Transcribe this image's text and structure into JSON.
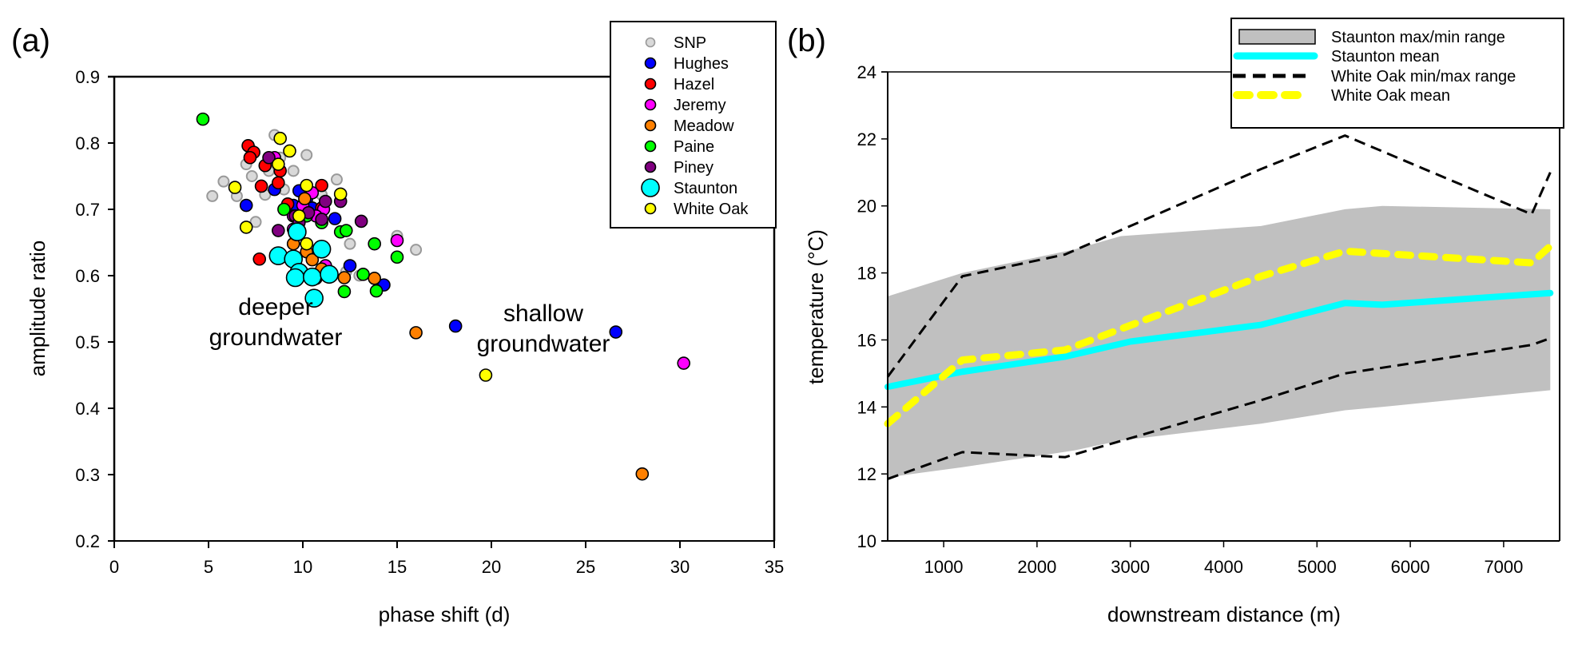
{
  "chart_data": [
    {
      "type": "scatter",
      "panel_label": "(a)",
      "title": "",
      "xlabel": "phase shift (d)",
      "ylabel": "amplitude ratio",
      "xlim": [
        0,
        35
      ],
      "ylim": [
        0.2,
        0.9
      ],
      "xticks": [
        0,
        5,
        10,
        15,
        20,
        25,
        30,
        35
      ],
      "yticks": [
        0.2,
        0.3,
        0.4,
        0.5,
        0.6,
        0.7,
        0.8,
        0.9
      ],
      "grid": false,
      "legend_position": "top-right",
      "annotations": [
        {
          "lines": [
            "deeper",
            "groundwater"
          ],
          "x": 11.5,
          "y": 0.55
        },
        {
          "lines": [
            "shallow",
            "groundwater"
          ],
          "x": 23,
          "y": 0.54
        }
      ],
      "series": [
        {
          "name": "SNP",
          "color": "#d9d9d9",
          "edge": "#999999",
          "size": "small",
          "points": [
            [
              5.2,
              0.72
            ],
            [
              5.8,
              0.742
            ],
            [
              6.5,
              0.72
            ],
            [
              7,
              0.768
            ],
            [
              7.3,
              0.75
            ],
            [
              7.5,
              0.681
            ],
            [
              8,
              0.722
            ],
            [
              8.5,
              0.812
            ],
            [
              8.8,
              0.778
            ],
            [
              9,
              0.73
            ],
            [
              9.5,
              0.758
            ],
            [
              10.2,
              0.782
            ],
            [
              10.5,
              0.702
            ],
            [
              11,
              0.722
            ],
            [
              11.8,
              0.745
            ],
            [
              12.5,
              0.648
            ],
            [
              13,
              0.6
            ],
            [
              15,
              0.66
            ],
            [
              16,
              0.639
            ],
            [
              9.3,
              0.705
            ],
            [
              10.8,
              0.69
            ],
            [
              12.3,
              0.606
            ],
            [
              7.2,
              0.792
            ],
            [
              8.2,
              0.758
            ]
          ]
        },
        {
          "name": "Hughes",
          "color": "#0000ff",
          "edge": "#000000",
          "size": "medium",
          "points": [
            [
              7,
              0.706
            ],
            [
              8.5,
              0.73
            ],
            [
              9.8,
              0.728
            ],
            [
              10.2,
              0.716
            ],
            [
              11.7,
              0.686
            ],
            [
              12.5,
              0.615
            ],
            [
              14.3,
              0.586
            ],
            [
              18.1,
              0.524
            ],
            [
              26.6,
              0.515
            ],
            [
              10.5,
              0.702
            ],
            [
              9.5,
              0.706
            ]
          ]
        },
        {
          "name": "Hazel",
          "color": "#ff0000",
          "edge": "#000000",
          "size": "medium",
          "points": [
            [
              7.1,
              0.796
            ],
            [
              7.4,
              0.786
            ],
            [
              7.2,
              0.778
            ],
            [
              8,
              0.766
            ],
            [
              7.8,
              0.735
            ],
            [
              8.7,
              0.74
            ],
            [
              8.8,
              0.758
            ],
            [
              9.2,
              0.708
            ],
            [
              11,
              0.736
            ],
            [
              7.7,
              0.625
            ],
            [
              11,
              0.702
            ]
          ]
        },
        {
          "name": "Jeremy",
          "color": "#ff00ff",
          "edge": "#000000",
          "size": "medium",
          "points": [
            [
              8.5,
              0.778
            ],
            [
              10.5,
              0.725
            ],
            [
              10,
              0.706
            ],
            [
              9.5,
              0.69
            ],
            [
              11.1,
              0.7
            ],
            [
              11.2,
              0.615
            ],
            [
              9.5,
              0.67
            ],
            [
              15,
              0.653
            ],
            [
              30.2,
              0.468
            ],
            [
              10.7,
              0.69
            ]
          ]
        },
        {
          "name": "Meadow",
          "color": "#ff8000",
          "edge": "#000000",
          "size": "medium",
          "points": [
            [
              10.1,
              0.716
            ],
            [
              9.5,
              0.648
            ],
            [
              10.2,
              0.636
            ],
            [
              10.5,
              0.624
            ],
            [
              10.7,
              0.596
            ],
            [
              12.2,
              0.597
            ],
            [
              13.8,
              0.596
            ],
            [
              16,
              0.514
            ],
            [
              28,
              0.301
            ],
            [
              11,
              0.61
            ]
          ]
        },
        {
          "name": "Paine",
          "color": "#00ff00",
          "edge": "#000000",
          "size": "medium",
          "points": [
            [
              4.7,
              0.836
            ],
            [
              9,
              0.7
            ],
            [
              10.2,
              0.69
            ],
            [
              11,
              0.68
            ],
            [
              12,
              0.666
            ],
            [
              12.3,
              0.668
            ],
            [
              13.8,
              0.648
            ],
            [
              15,
              0.628
            ],
            [
              13.2,
              0.602
            ],
            [
              12.2,
              0.576
            ],
            [
              13.9,
              0.577
            ]
          ]
        },
        {
          "name": "Piney",
          "color": "#800080",
          "edge": "#000000",
          "size": "medium",
          "points": [
            [
              8.2,
              0.778
            ],
            [
              9.6,
              0.69
            ],
            [
              10.3,
              0.695
            ],
            [
              9.8,
              0.68
            ],
            [
              11,
              0.685
            ],
            [
              11.2,
              0.712
            ],
            [
              12,
              0.712
            ],
            [
              13.1,
              0.682
            ],
            [
              8.7,
              0.668
            ]
          ]
        },
        {
          "name": "Staunton",
          "color": "#00ffff",
          "edge": "#000000",
          "size": "large",
          "points": [
            [
              9.7,
              0.666
            ],
            [
              8.7,
              0.63
            ],
            [
              9.5,
              0.625
            ],
            [
              9.8,
              0.605
            ],
            [
              9.6,
              0.597
            ],
            [
              10.5,
              0.598
            ],
            [
              11,
              0.64
            ],
            [
              11.4,
              0.602
            ],
            [
              10.6,
              0.566
            ]
          ]
        },
        {
          "name": "White Oak",
          "color": "#ffff00",
          "edge": "#000000",
          "size": "medium",
          "points": [
            [
              6.4,
              0.733
            ],
            [
              8.8,
              0.807
            ],
            [
              9.3,
              0.788
            ],
            [
              8.7,
              0.768
            ],
            [
              10.2,
              0.736
            ],
            [
              12,
              0.723
            ],
            [
              7,
              0.673
            ],
            [
              10.2,
              0.648
            ],
            [
              19.7,
              0.45
            ],
            [
              9.8,
              0.69
            ]
          ]
        }
      ]
    },
    {
      "type": "line",
      "panel_label": "(b)",
      "title": "",
      "xlabel": "downstream distance (m)",
      "ylabel": "temperature (°C)",
      "xlim": [
        400,
        7600
      ],
      "ylim": [
        10,
        24
      ],
      "xticks": [
        1000,
        2000,
        3000,
        4000,
        5000,
        6000,
        7000
      ],
      "yticks": [
        10,
        12,
        14,
        16,
        18,
        20,
        22,
        24
      ],
      "grid": false,
      "legend_position": "top-right",
      "band": {
        "name": "Staunton max/min range",
        "color": "#c0c0c0",
        "x": [
          400,
          1200,
          2400,
          2900,
          4400,
          5300,
          5700,
          7500
        ],
        "upper": [
          17.3,
          18.0,
          18.7,
          19.1,
          19.4,
          19.9,
          20.0,
          19.9
        ],
        "lower": [
          11.9,
          12.2,
          12.7,
          13.0,
          13.5,
          13.9,
          14.0,
          14.5
        ]
      },
      "series": [
        {
          "name": "Staunton mean",
          "color": "#00ffff",
          "style": "solid",
          "x": [
            400,
            1200,
            2300,
            3000,
            4400,
            5300,
            5700,
            7500
          ],
          "y": [
            14.6,
            15.05,
            15.5,
            15.95,
            16.45,
            17.1,
            17.05,
            17.4
          ]
        },
        {
          "name": "White Oak min/max range",
          "color": "#000000",
          "style": "dashed",
          "x": [
            400,
            1200,
            2300,
            4400,
            5300,
            7300,
            7500
          ],
          "y": [
            14.9,
            17.9,
            18.55,
            21.1,
            22.1,
            19.75,
            21.0
          ]
        },
        {
          "name": "White Oak min/max range (min)",
          "color": "#000000",
          "style": "dashed",
          "x": [
            400,
            1200,
            2300,
            4400,
            5300,
            7300,
            7500
          ],
          "y": [
            11.85,
            12.65,
            12.5,
            14.2,
            15.0,
            15.85,
            16.05
          ]
        },
        {
          "name": "White Oak mean",
          "color": "#ffff00",
          "style": "thick-dashed",
          "x": [
            400,
            1200,
            2300,
            4400,
            5300,
            7300,
            7500
          ],
          "y": [
            13.5,
            15.4,
            15.7,
            17.9,
            18.65,
            18.3,
            18.8
          ]
        }
      ],
      "legend": [
        "Staunton max/min range",
        "Staunton mean",
        "White Oak min/max range",
        "White Oak mean"
      ]
    }
  ]
}
